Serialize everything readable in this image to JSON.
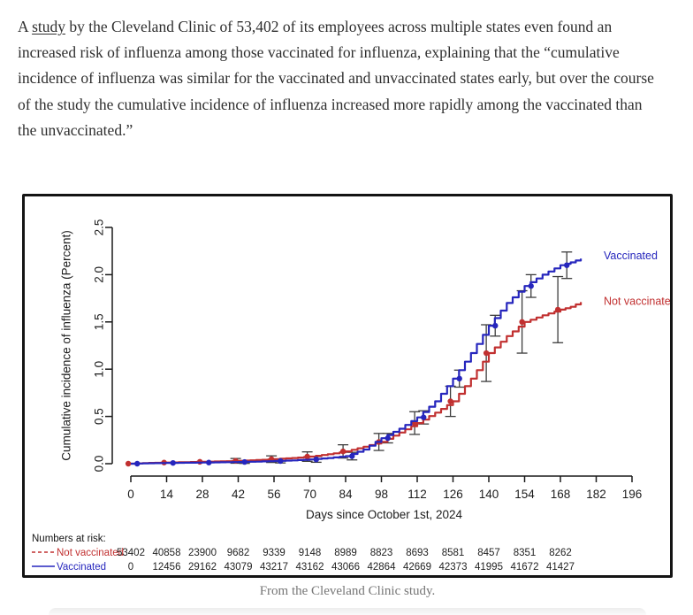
{
  "article": {
    "paragraph_before_link": "A ",
    "link_text": "study",
    "paragraph_after_link": " by the Cleveland Clinic of 53,402 of its employees across multiple states even found an increased risk of influenza among those vaccinated for influenza, explaining that the “cumulative incidence of influenza was similar for the vaccinated and unvaccinated states early, but over the course of the study the cumulative incidence of influenza increased more rapidly among the vaccinated than the unvaccinated.”",
    "caption": "From the Cleveland Clinic study."
  },
  "chart_data": {
    "type": "line",
    "title": "",
    "xlabel": "Days since October 1st, 2024",
    "ylabel": "Cumulative incidence of influenza (Percent)",
    "x_ticks": [
      0,
      14,
      28,
      42,
      56,
      70,
      84,
      98,
      112,
      126,
      140,
      154,
      168,
      182,
      196
    ],
    "y_ticks": [
      "0.0",
      "0.5",
      "1.0",
      "1.5",
      "2.0",
      "2.5"
    ],
    "xlim": [
      0,
      196
    ],
    "ylim": [
      0,
      2.5
    ],
    "grid": false,
    "legend_position": "right-of-line-ends",
    "axis_color": "#1a1a1a",
    "error_bar_color": "#3d3d3d",
    "series": [
      {
        "name": "Not vaccinated",
        "color": "#c13030",
        "style": "solid",
        "marker_offset_days": -1,
        "label_at_pct": 1.72,
        "x": [
          0,
          7,
          14,
          21,
          28,
          35,
          42,
          49,
          56,
          63,
          70,
          77,
          84,
          91,
          98,
          105,
          112,
          119,
          126,
          133,
          140,
          147,
          154,
          161,
          168,
          172,
          176
        ],
        "y": [
          0,
          0.008,
          0.012,
          0.016,
          0.02,
          0.025,
          0.03,
          0.038,
          0.048,
          0.06,
          0.075,
          0.1,
          0.13,
          0.18,
          0.23,
          0.33,
          0.43,
          0.54,
          0.66,
          0.9,
          1.17,
          1.35,
          1.5,
          1.57,
          1.63,
          1.66,
          1.71
        ],
        "marker_days": [
          0,
          14,
          28,
          42,
          56,
          70,
          84,
          98,
          112,
          126,
          140,
          154,
          168
        ],
        "err_days": [
          42,
          56,
          70,
          84,
          98,
          112,
          126,
          140,
          154,
          168
        ],
        "err": [
          0.025,
          0.035,
          0.05,
          0.07,
          0.09,
          0.12,
          0.16,
          0.3,
          0.33,
          0.35
        ]
      },
      {
        "name": "Vaccinated",
        "color": "#2626bd",
        "style": "solid",
        "marker_offset_days": 2.5,
        "label_at_pct": 2.2,
        "x": [
          0,
          7,
          14,
          21,
          28,
          35,
          42,
          49,
          56,
          63,
          70,
          77,
          84,
          91,
          98,
          105,
          112,
          119,
          126,
          133,
          140,
          147,
          154,
          161,
          168,
          172,
          176
        ],
        "y": [
          0,
          0.005,
          0.008,
          0.01,
          0.012,
          0.015,
          0.018,
          0.022,
          0.028,
          0.035,
          0.045,
          0.06,
          0.08,
          0.15,
          0.27,
          0.37,
          0.49,
          0.66,
          0.9,
          1.17,
          1.46,
          1.7,
          1.88,
          2.0,
          2.1,
          2.13,
          2.17
        ],
        "marker_days": [
          0,
          14,
          28,
          42,
          56,
          70,
          84,
          98,
          112,
          126,
          140,
          154,
          168
        ],
        "err_days": [
          42,
          56,
          70,
          84,
          98,
          112,
          126,
          140,
          154,
          168
        ],
        "err": [
          0.015,
          0.02,
          0.03,
          0.04,
          0.05,
          0.07,
          0.09,
          0.11,
          0.12,
          0.14
        ]
      }
    ],
    "numbers_at_risk": {
      "header": "Numbers at risk:",
      "days": [
        0,
        14,
        28,
        42,
        56,
        70,
        84,
        98,
        112,
        126,
        140,
        154,
        168
      ],
      "rows": [
        {
          "label": "Not vaccinated",
          "color": "#c13030",
          "line_style": "dashed",
          "values": [
            53402,
            40858,
            23900,
            9682,
            9339,
            9148,
            8989,
            8823,
            8693,
            8581,
            8457,
            8351,
            8262
          ]
        },
        {
          "label": "Vaccinated",
          "color": "#2626bd",
          "line_style": "solid",
          "values": [
            0,
            12456,
            29162,
            43079,
            43217,
            43162,
            43066,
            42864,
            42669,
            42373,
            41995,
            41672,
            41427
          ]
        }
      ]
    }
  }
}
